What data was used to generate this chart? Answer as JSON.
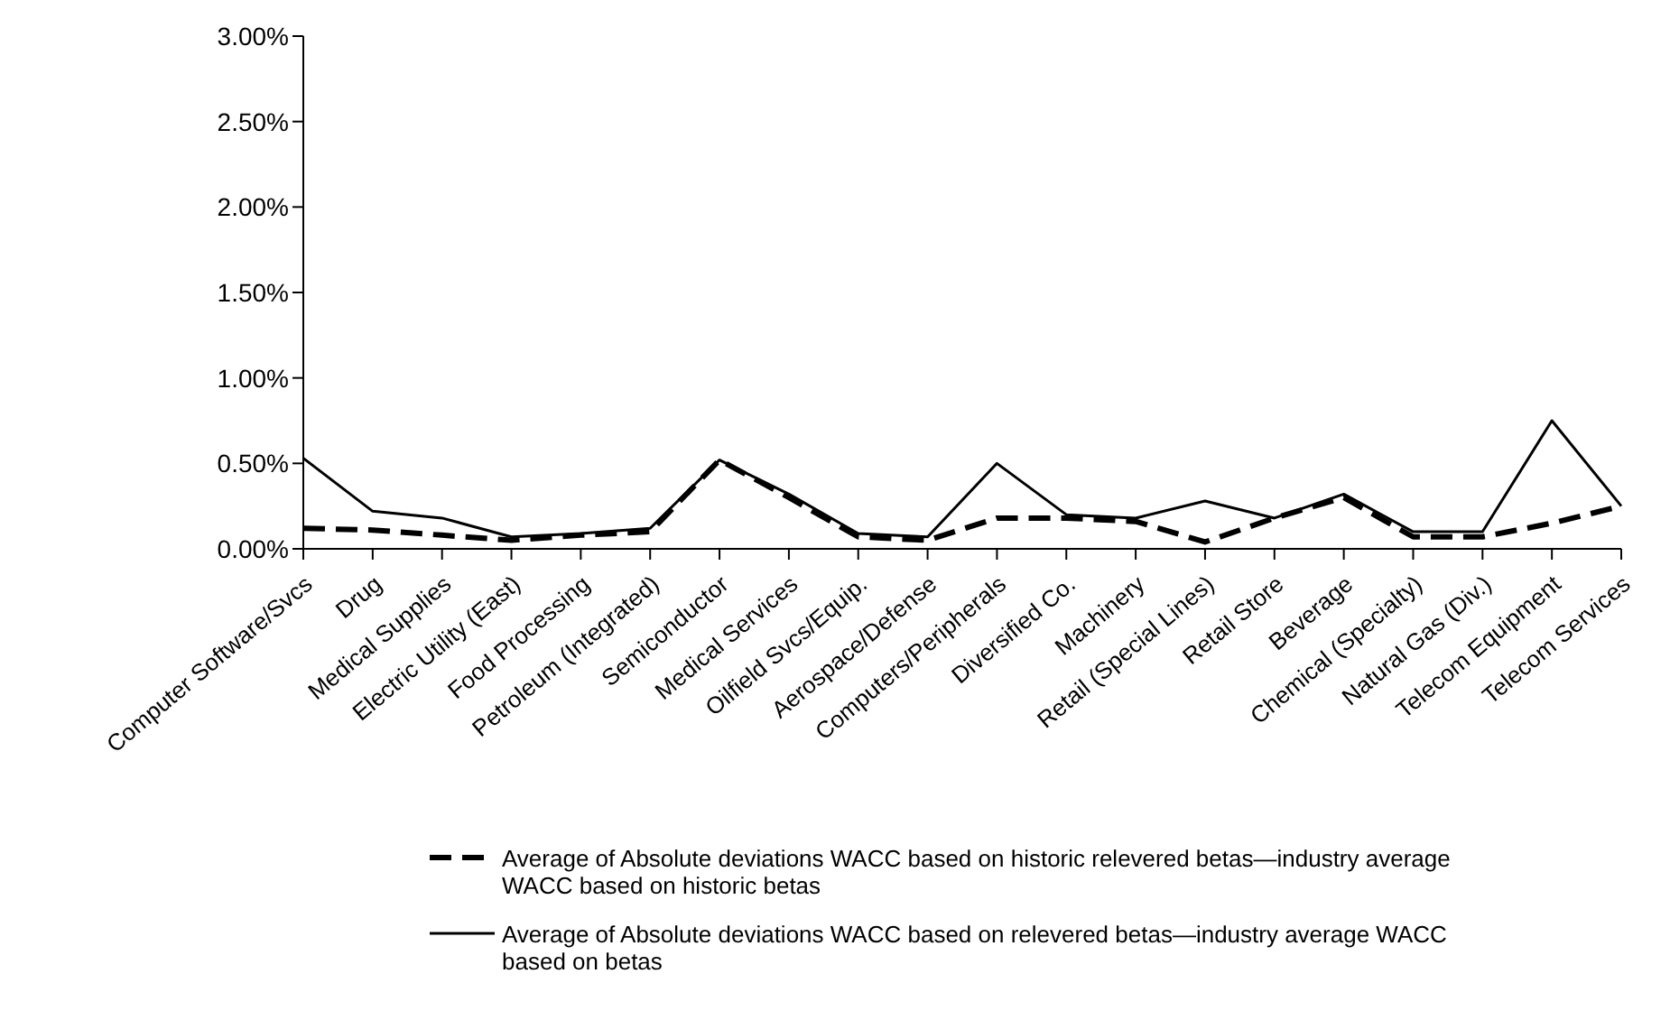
{
  "chart_data": {
    "type": "line",
    "categories": [
      "Computer Software/Svcs",
      "Drug",
      "Medical Supplies",
      "Electric Utility (East)",
      "Food Processing",
      "Petroleum (Integrated)",
      "Semiconductor",
      "Medical Services",
      "Oilfield Svcs/Equip.",
      "Aerospace/Defense",
      "Computers/Peripherals",
      "Diversified Co.",
      "Machinery",
      "Retail (Special Lines)",
      "Retail Store",
      "Beverage",
      "Chemical (Specialty)",
      "Natural Gas (Div.)",
      "Telecom Equipment",
      "Telecom Services"
    ],
    "series": [
      {
        "name": "Average of Absolute deviations WACC based on historic relevered betas—industry average WACC based on historic betas",
        "color": "#000000",
        "line_style": "dashed",
        "values": [
          0.12,
          0.11,
          0.08,
          0.05,
          0.08,
          0.1,
          0.52,
          0.3,
          0.07,
          0.05,
          0.18,
          0.18,
          0.16,
          0.04,
          0.18,
          0.3,
          0.07,
          0.07,
          0.15,
          0.25
        ]
      },
      {
        "name": "Average of Absolute deviations WACC based on relevered betas—industry average WACC based on betas",
        "color": "#000000",
        "line_style": "solid",
        "values": [
          0.53,
          0.22,
          0.18,
          0.07,
          0.09,
          0.12,
          0.52,
          0.32,
          0.09,
          0.07,
          0.5,
          0.2,
          0.18,
          0.28,
          0.18,
          0.32,
          0.1,
          0.1,
          0.75,
          0.25
        ]
      }
    ],
    "ylim": [
      0,
      3
    ],
    "yticks": [
      {
        "value": 0,
        "label": "0.00%"
      },
      {
        "value": 0.5,
        "label": "0.50%"
      },
      {
        "value": 1,
        "label": "1.00%"
      },
      {
        "value": 1.5,
        "label": "1.50%"
      },
      {
        "value": 2,
        "label": "2.00%"
      },
      {
        "value": 2.5,
        "label": "2.50%"
      },
      {
        "value": 3,
        "label": "3.00%"
      }
    ],
    "grid": false,
    "legend": "bottom",
    "marker": "none"
  }
}
